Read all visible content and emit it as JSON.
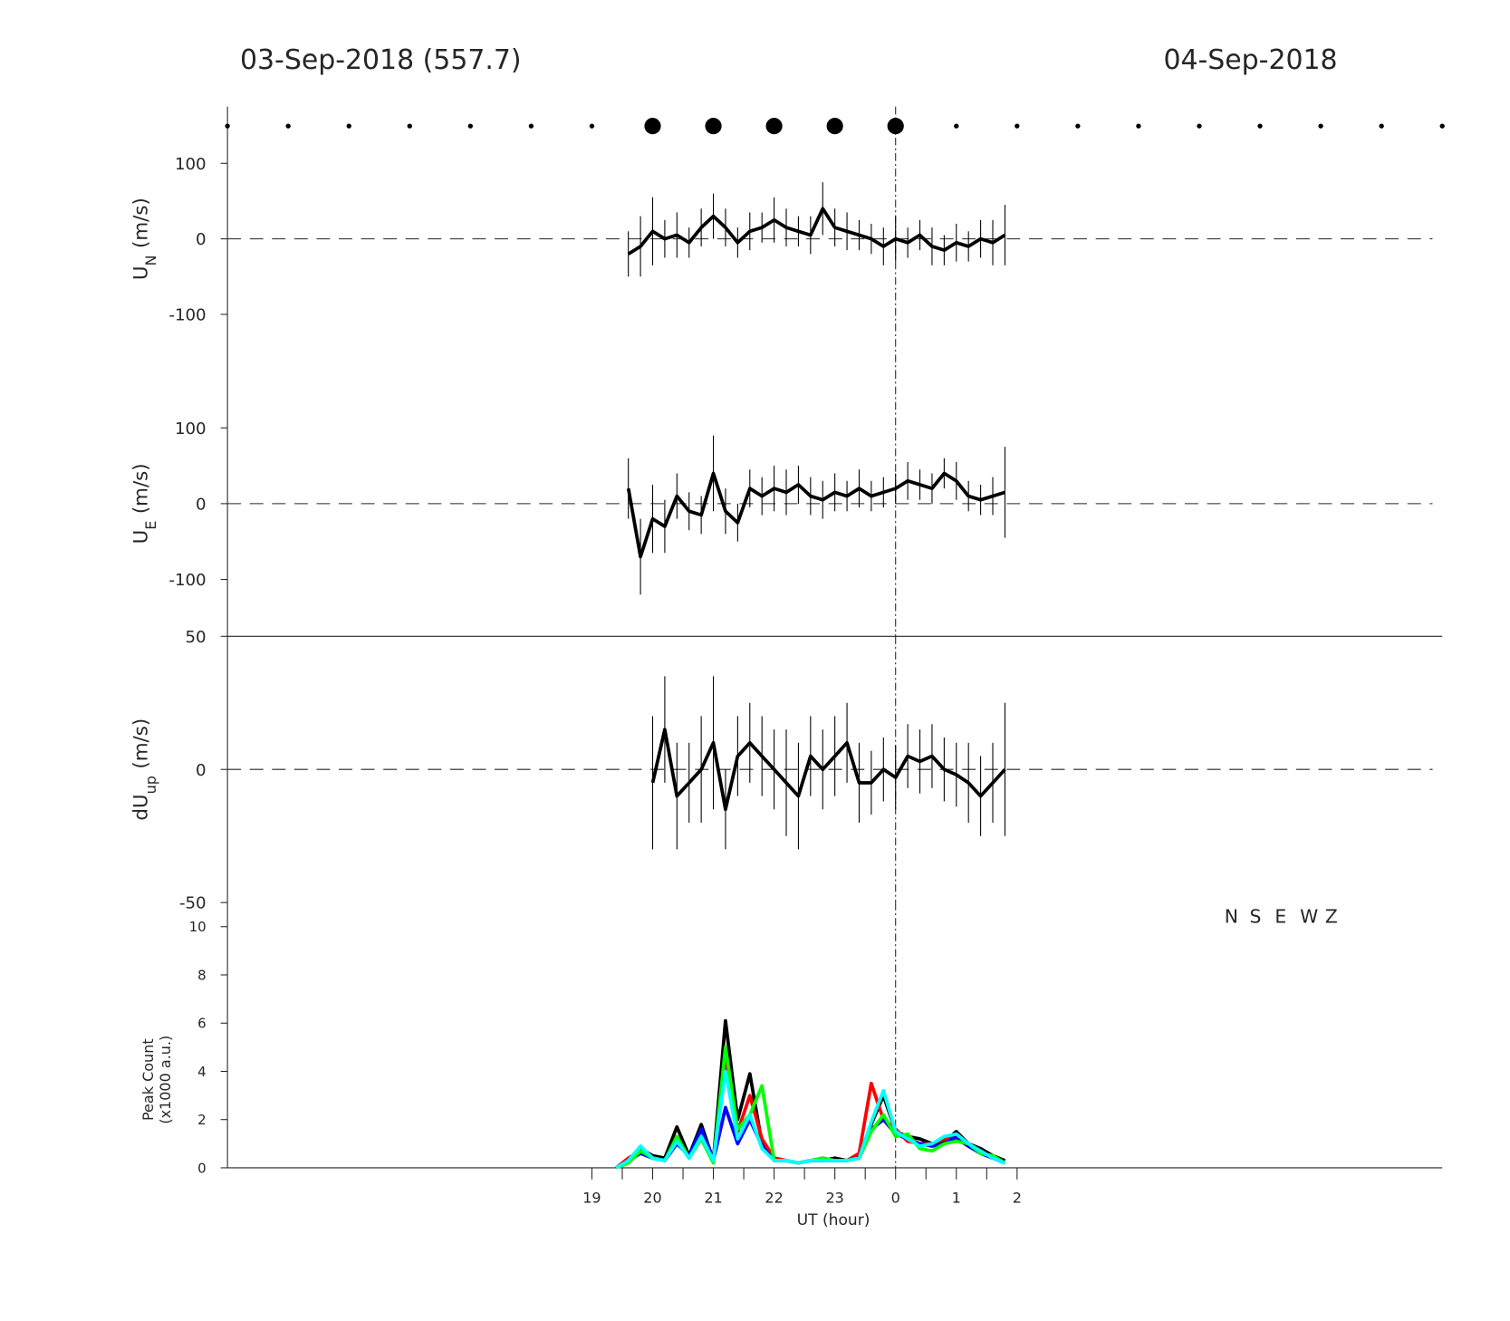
{
  "chart_data": [
    {
      "type": "errorbar",
      "title": "03-Sep-2018 (557.7)",
      "title_right": "04-Sep-2018",
      "ylabel": [
        "U",
        "N",
        "(m/s)"
      ],
      "xlim": [
        13,
        33
      ],
      "ylim": [
        -175,
        175
      ],
      "yticks": [
        100,
        0,
        -100
      ],
      "vline": 24,
      "markers": {
        "x": [
          13,
          14,
          15,
          16,
          17,
          18,
          19,
          20,
          21,
          22,
          23,
          24,
          25,
          26,
          27,
          28,
          29,
          30,
          31,
          32,
          33
        ],
        "large": [
          20,
          21,
          22,
          23,
          24
        ]
      },
      "x": [
        19.6,
        19.8,
        20,
        20.2,
        20.4,
        20.6,
        20.8,
        21,
        21.2,
        21.4,
        21.6,
        21.8,
        22,
        22.2,
        22.4,
        22.6,
        22.8,
        23,
        23.2,
        23.4,
        23.6,
        23.8,
        24,
        24.2,
        24.4,
        24.6,
        24.8,
        25,
        25.2,
        25.4,
        25.6,
        25.8
      ],
      "series": [
        {
          "color": "#000000",
          "values": [
            -20,
            -10,
            10,
            0,
            5,
            -5,
            15,
            30,
            15,
            -5,
            10,
            15,
            25,
            15,
            10,
            5,
            40,
            15,
            10,
            5,
            0,
            -10,
            0,
            -5,
            5,
            -10,
            -15,
            -5,
            -10,
            0,
            -5,
            5
          ],
          "errors": [
            30,
            40,
            45,
            25,
            30,
            20,
            25,
            30,
            25,
            20,
            25,
            20,
            30,
            25,
            20,
            25,
            35,
            25,
            25,
            20,
            20,
            25,
            30,
            20,
            20,
            25,
            20,
            25,
            20,
            25,
            30,
            40
          ]
        }
      ]
    },
    {
      "type": "errorbar",
      "ylabel": [
        "U",
        "E",
        "(m/s)"
      ],
      "xlim": [
        13,
        33
      ],
      "ylim": [
        -175,
        175
      ],
      "yticks": [
        100,
        0,
        -100
      ],
      "vline": 24,
      "x": [
        19.6,
        19.8,
        20,
        20.2,
        20.4,
        20.6,
        20.8,
        21,
        21.2,
        21.4,
        21.6,
        21.8,
        22,
        22.2,
        22.4,
        22.6,
        22.8,
        23,
        23.2,
        23.4,
        23.6,
        23.8,
        24,
        24.2,
        24.4,
        24.6,
        24.8,
        25,
        25.2,
        25.4,
        25.6,
        25.8
      ],
      "series": [
        {
          "color": "#000000",
          "values": [
            20,
            -70,
            -20,
            -30,
            10,
            -10,
            -15,
            40,
            -10,
            -25,
            20,
            10,
            20,
            15,
            25,
            10,
            5,
            15,
            10,
            20,
            10,
            15,
            20,
            30,
            25,
            20,
            40,
            30,
            10,
            5,
            10,
            15
          ],
          "errors": [
            40,
            50,
            45,
            35,
            30,
            25,
            25,
            50,
            30,
            25,
            25,
            25,
            30,
            30,
            25,
            25,
            25,
            25,
            20,
            25,
            20,
            20,
            20,
            25,
            20,
            20,
            20,
            25,
            20,
            20,
            25,
            60
          ]
        }
      ]
    },
    {
      "type": "errorbar",
      "ylabel": [
        "dU",
        "up",
        "(m/s)"
      ],
      "xlim": [
        13,
        33
      ],
      "ylim": [
        -50,
        50
      ],
      "yticks": [
        50,
        0,
        -50
      ],
      "vline": 24,
      "x": [
        19.6,
        19.8,
        20,
        20.2,
        20.4,
        20.6,
        20.8,
        21,
        21.2,
        21.4,
        21.6,
        21.8,
        22,
        22.2,
        22.4,
        22.6,
        22.8,
        23,
        23.2,
        23.4,
        23.6,
        23.8,
        24,
        24.2,
        24.4,
        24.6,
        24.8,
        25,
        25.2,
        25.4,
        25.6,
        25.8
      ],
      "series": [
        {
          "color": "#000000",
          "values": [
            null,
            null,
            -5,
            15,
            -10,
            -5,
            0,
            10,
            -15,
            5,
            10,
            5,
            0,
            -5,
            -10,
            5,
            0,
            5,
            10,
            -5,
            -5,
            0,
            -3,
            5,
            3,
            5,
            0,
            -2,
            -5,
            -10,
            -5,
            0
          ],
          "errors": [
            null,
            null,
            25,
            20,
            20,
            15,
            20,
            25,
            15,
            15,
            15,
            15,
            15,
            20,
            20,
            15,
            15,
            15,
            15,
            15,
            12,
            12,
            12,
            12,
            12,
            12,
            12,
            12,
            15,
            15,
            15,
            25
          ]
        }
      ]
    },
    {
      "type": "line",
      "ylabel": [
        "Peak Count",
        "(x1000 a.u.)"
      ],
      "xlabel": "UT (hour)",
      "xlim": [
        13,
        33
      ],
      "ylim": [
        0,
        11
      ],
      "yticks": [
        0,
        2,
        4,
        6,
        8,
        10
      ],
      "vline": 24,
      "xticks": [
        19,
        20,
        21,
        22,
        23,
        {
          "value": 24,
          "label": "0"
        },
        {
          "value": 25,
          "label": "1"
        },
        {
          "value": 26,
          "label": "2"
        }
      ],
      "xminor": [
        19.5,
        20.5,
        21.5,
        22.5,
        23.5,
        24.5,
        25.5
      ],
      "x": [
        19.4,
        19.6,
        19.8,
        20,
        20.2,
        20.4,
        20.6,
        20.8,
        21,
        21.2,
        21.4,
        21.6,
        21.8,
        22,
        22.2,
        22.4,
        22.6,
        22.8,
        23,
        23.2,
        23.4,
        23.6,
        23.8,
        24,
        24.2,
        24.4,
        24.6,
        24.8,
        25,
        25.2,
        25.4,
        25.6,
        25.8
      ],
      "series": [
        {
          "name": "N",
          "color": "#000000",
          "values": [
            0,
            0.3,
            0.8,
            0.5,
            0.4,
            1.7,
            0.5,
            1.8,
            0.3,
            6.1,
            2.0,
            3.9,
            1.0,
            0.4,
            0.3,
            0.2,
            0.3,
            0.3,
            0.4,
            0.3,
            0.5,
            1.8,
            3.0,
            1.5,
            1.3,
            1.2,
            1.0,
            1.1,
            1.5,
            1.0,
            0.8,
            0.5,
            0.3
          ]
        },
        {
          "name": "S",
          "color": "#ff0000",
          "values": [
            0,
            0.4,
            0.7,
            0.4,
            0.3,
            1.2,
            0.4,
            1.3,
            0.3,
            4.5,
            1.5,
            3.0,
            1.2,
            0.4,
            0.3,
            0.2,
            0.3,
            0.4,
            0.3,
            0.3,
            0.6,
            3.5,
            2.0,
            1.6,
            1.1,
            1.0,
            1.0,
            1.2,
            1.2,
            0.9,
            0.7,
            0.4,
            0.2
          ]
        },
        {
          "name": "E",
          "color": "#0000ff",
          "values": [
            0,
            0.3,
            0.6,
            0.4,
            0.3,
            1.0,
            0.5,
            1.6,
            0.3,
            2.5,
            1.0,
            2.0,
            0.9,
            0.3,
            0.3,
            0.2,
            0.3,
            0.3,
            0.3,
            0.3,
            0.4,
            1.6,
            2.0,
            1.4,
            1.2,
            1.0,
            0.9,
            1.0,
            1.3,
            0.9,
            0.6,
            0.4,
            0.2
          ]
        },
        {
          "name": "W",
          "color": "#00ff00",
          "values": [
            0,
            0.2,
            0.7,
            0.4,
            0.3,
            1.3,
            0.4,
            1.2,
            0.2,
            5.0,
            1.6,
            2.2,
            3.4,
            0.3,
            0.3,
            0.2,
            0.3,
            0.4,
            0.3,
            0.3,
            0.4,
            1.5,
            2.2,
            1.3,
            1.4,
            0.8,
            0.7,
            1.0,
            1.1,
            1.0,
            0.6,
            0.5,
            0.2
          ]
        },
        {
          "name": "Z",
          "color": "#00ffff",
          "values": [
            0,
            0.3,
            0.9,
            0.4,
            0.3,
            1.1,
            0.4,
            1.3,
            0.3,
            4.0,
            1.2,
            2.2,
            0.8,
            0.3,
            0.3,
            0.2,
            0.3,
            0.3,
            0.3,
            0.3,
            0.4,
            1.9,
            3.2,
            1.5,
            1.2,
            0.9,
            1.0,
            1.3,
            1.4,
            1.0,
            0.7,
            0.4,
            0.2
          ]
        }
      ]
    }
  ]
}
